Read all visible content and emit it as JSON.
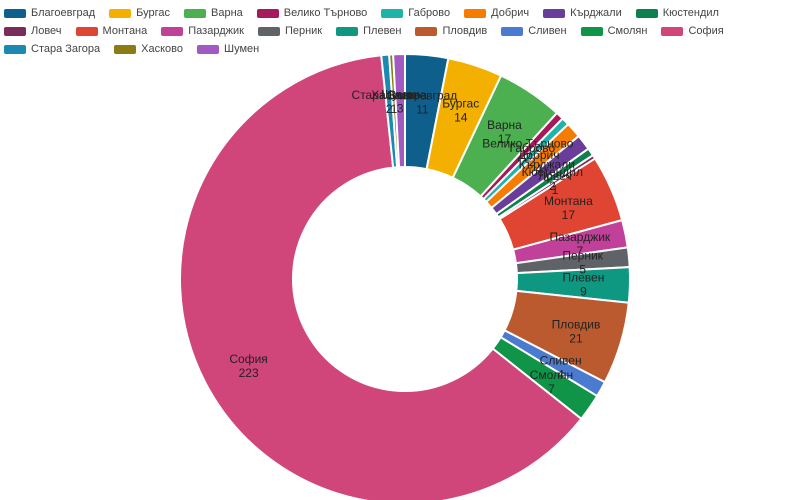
{
  "chart_data": {
    "type": "pie",
    "donut": true,
    "legend_position": "top",
    "title": "",
    "slices": [
      {
        "name": "Благоевград",
        "value": 11,
        "color": "#0f5f8c"
      },
      {
        "name": "Бургас",
        "value": 14,
        "color": "#f4b000"
      },
      {
        "name": "Варна",
        "value": 17,
        "color": "#4caf50"
      },
      {
        "name": "Велико Търново",
        "value": 2,
        "color": "#a6195a"
      },
      {
        "name": "Габрово",
        "value": 2,
        "color": "#1fb3aa"
      },
      {
        "name": "Добрич",
        "value": 4,
        "color": "#f57c00"
      },
      {
        "name": "Кърджали",
        "value": 4,
        "color": "#6a3d9a"
      },
      {
        "name": "Кюстендил",
        "value": 2,
        "color": "#0e7f4f"
      },
      {
        "name": "Ловеч",
        "value": 1,
        "color": "#7b2d5a"
      },
      {
        "name": "Монтана",
        "value": 17,
        "color": "#e04432"
      },
      {
        "name": "Пазарджик",
        "value": 7,
        "color": "#c0409a"
      },
      {
        "name": "Перник",
        "value": 5,
        "color": "#5f6368"
      },
      {
        "name": "Плевен",
        "value": 9,
        "color": "#0e9882"
      },
      {
        "name": "Пловдив",
        "value": 21,
        "color": "#bb5a2e"
      },
      {
        "name": "Сливен",
        "value": 4,
        "color": "#4a7bd0"
      },
      {
        "name": "Смолян",
        "value": 7,
        "color": "#109448"
      },
      {
        "name": "София",
        "value": 223,
        "color": "#d0457a"
      },
      {
        "name": "Стара Загора",
        "value": 2,
        "color": "#1a8ab0"
      },
      {
        "name": "Хасково",
        "value": 1,
        "color": "#8c7a14"
      },
      {
        "name": "Шумен",
        "value": 3,
        "color": "#a25ac2"
      }
    ]
  }
}
